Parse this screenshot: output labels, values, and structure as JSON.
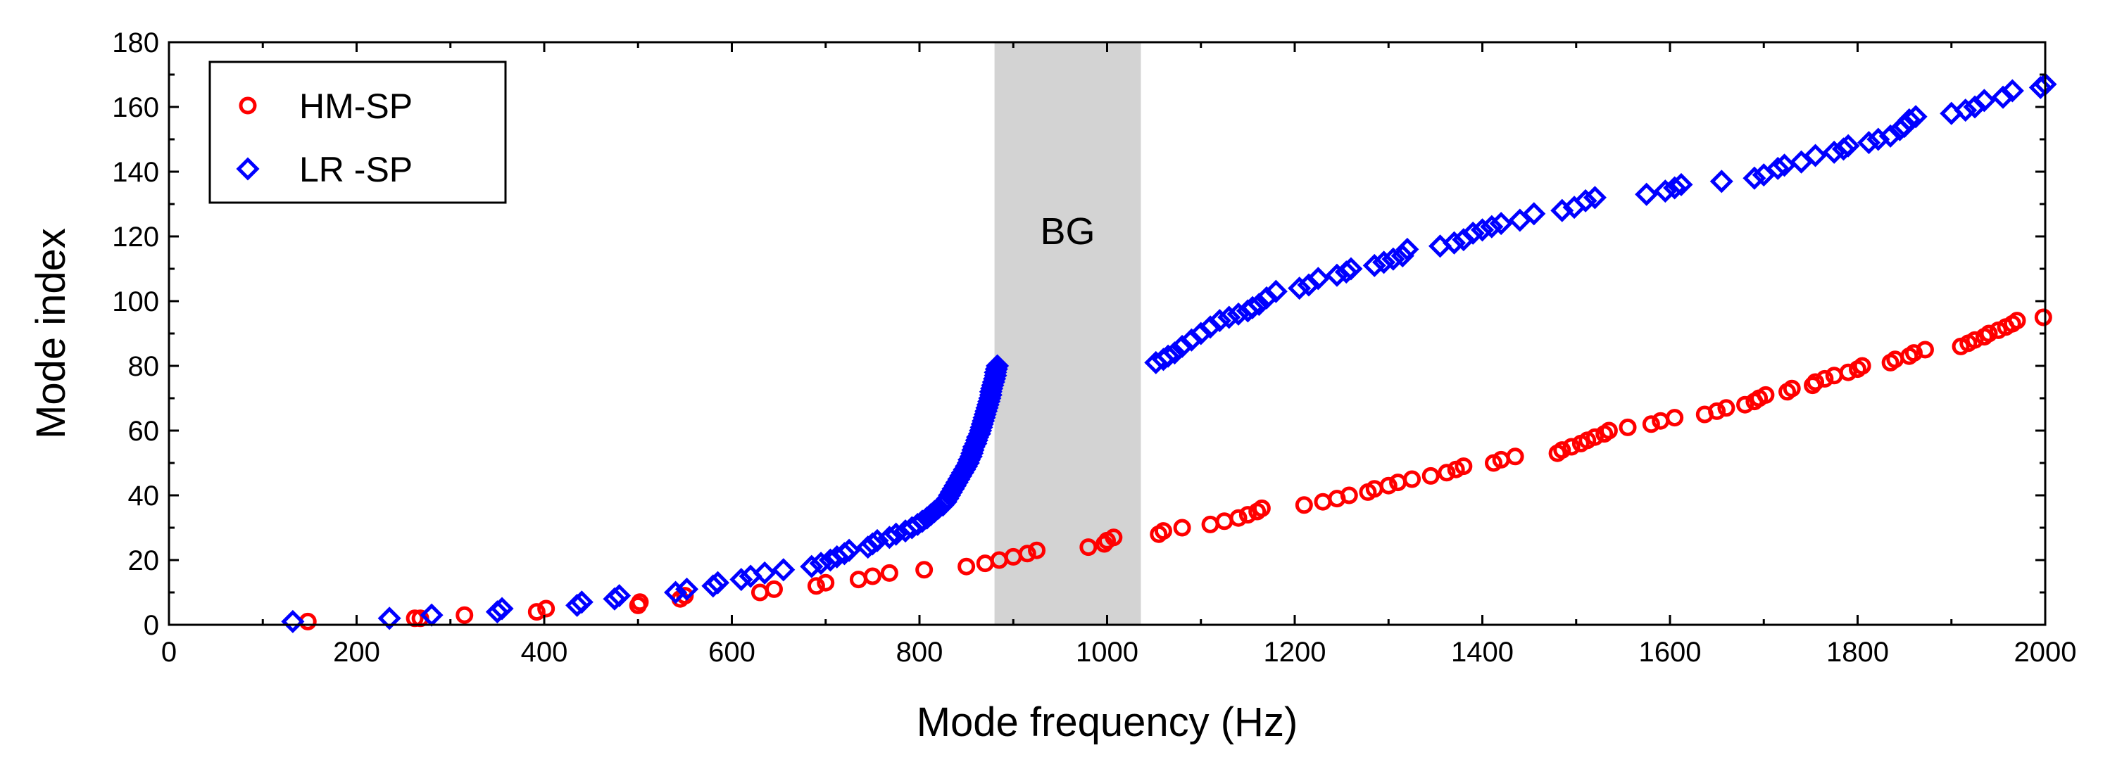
{
  "chart_data": {
    "type": "scatter",
    "title": "",
    "xlabel": "Mode frequency (Hz)",
    "ylabel": "Mode index",
    "xlim": [
      0,
      2000
    ],
    "ylim": [
      0,
      180
    ],
    "xticks": [
      0,
      200,
      400,
      600,
      800,
      1000,
      1200,
      1400,
      1600,
      1800,
      2000
    ],
    "yticks": [
      0,
      20,
      40,
      60,
      80,
      100,
      120,
      140,
      160,
      180
    ],
    "xtick_labels": [
      "0",
      "200",
      "400",
      "600",
      "800",
      "1000",
      "1200",
      "1400",
      "1600",
      "1800",
      "2000"
    ],
    "ytick_labels": [
      "0",
      "20",
      "40",
      "60",
      "80",
      "100",
      "120",
      "140",
      "160",
      "180"
    ],
    "grid": false,
    "legend_position": "top-left",
    "band": {
      "label": "BG",
      "x_start": 880,
      "x_end": 1036,
      "color": "#d3d3d3"
    },
    "series": [
      {
        "name": "HM-SP",
        "marker": "circle",
        "color": "#ff0000",
        "points": [
          [
            148,
            1
          ],
          [
            262,
            2
          ],
          [
            268,
            2
          ],
          [
            315,
            3
          ],
          [
            392,
            4
          ],
          [
            402,
            5
          ],
          [
            500,
            6
          ],
          [
            502,
            7
          ],
          [
            545,
            8
          ],
          [
            550,
            9
          ],
          [
            630,
            10
          ],
          [
            645,
            11
          ],
          [
            690,
            12
          ],
          [
            700,
            13
          ],
          [
            735,
            14
          ],
          [
            750,
            15
          ],
          [
            768,
            16
          ],
          [
            805,
            17
          ],
          [
            850,
            18
          ],
          [
            870,
            19
          ],
          [
            885,
            20
          ],
          [
            900,
            21
          ],
          [
            915,
            22
          ],
          [
            925,
            23
          ],
          [
            980,
            24
          ],
          [
            997,
            25
          ],
          [
            1000,
            26
          ],
          [
            1007,
            27
          ],
          [
            1055,
            28
          ],
          [
            1060,
            29
          ],
          [
            1080,
            30
          ],
          [
            1110,
            31
          ],
          [
            1125,
            32
          ],
          [
            1140,
            33
          ],
          [
            1150,
            34
          ],
          [
            1160,
            35
          ],
          [
            1165,
            36
          ],
          [
            1210,
            37
          ],
          [
            1230,
            38
          ],
          [
            1245,
            39
          ],
          [
            1258,
            40
          ],
          [
            1278,
            41
          ],
          [
            1285,
            42
          ],
          [
            1300,
            43
          ],
          [
            1310,
            44
          ],
          [
            1325,
            45
          ],
          [
            1345,
            46
          ],
          [
            1362,
            47
          ],
          [
            1372,
            48
          ],
          [
            1380,
            49
          ],
          [
            1412,
            50
          ],
          [
            1420,
            51
          ],
          [
            1435,
            52
          ],
          [
            1480,
            53
          ],
          [
            1485,
            54
          ],
          [
            1495,
            55
          ],
          [
            1505,
            56
          ],
          [
            1512,
            57
          ],
          [
            1520,
            58
          ],
          [
            1530,
            59
          ],
          [
            1535,
            60
          ],
          [
            1555,
            61
          ],
          [
            1580,
            62
          ],
          [
            1590,
            63
          ],
          [
            1605,
            64
          ],
          [
            1637,
            65
          ],
          [
            1650,
            66
          ],
          [
            1660,
            67
          ],
          [
            1680,
            68
          ],
          [
            1690,
            69
          ],
          [
            1695,
            70
          ],
          [
            1702,
            71
          ],
          [
            1725,
            72
          ],
          [
            1730,
            73
          ],
          [
            1752,
            74
          ],
          [
            1755,
            75
          ],
          [
            1765,
            76
          ],
          [
            1775,
            77
          ],
          [
            1790,
            78
          ],
          [
            1800,
            79
          ],
          [
            1805,
            80
          ],
          [
            1835,
            81
          ],
          [
            1840,
            82
          ],
          [
            1855,
            83
          ],
          [
            1860,
            84
          ],
          [
            1872,
            85
          ],
          [
            1910,
            86
          ],
          [
            1918,
            87
          ],
          [
            1925,
            88
          ],
          [
            1935,
            89
          ],
          [
            1940,
            90
          ],
          [
            1950,
            91
          ],
          [
            1958,
            92
          ],
          [
            1965,
            93
          ],
          [
            1970,
            94
          ],
          [
            1998,
            95
          ]
        ]
      },
      {
        "name": "LR -SP",
        "marker": "diamond",
        "color": "#0000ff",
        "points": [
          [
            132,
            1
          ],
          [
            235,
            2
          ],
          [
            280,
            3
          ],
          [
            350,
            4
          ],
          [
            355,
            5
          ],
          [
            435,
            6
          ],
          [
            440,
            7
          ],
          [
            475,
            8
          ],
          [
            480,
            9
          ],
          [
            540,
            10
          ],
          [
            552,
            11
          ],
          [
            580,
            12
          ],
          [
            585,
            13
          ],
          [
            610,
            14
          ],
          [
            620,
            15
          ],
          [
            635,
            16
          ],
          [
            655,
            17
          ],
          [
            685,
            18
          ],
          [
            695,
            19
          ],
          [
            705,
            20
          ],
          [
            712,
            21
          ],
          [
            720,
            22
          ],
          [
            725,
            23
          ],
          [
            745,
            24
          ],
          [
            750,
            25
          ],
          [
            755,
            26
          ],
          [
            768,
            27
          ],
          [
            775,
            28
          ],
          [
            785,
            29
          ],
          [
            792,
            30
          ],
          [
            798,
            31
          ],
          [
            803,
            32
          ],
          [
            808,
            33
          ],
          [
            812,
            34
          ],
          [
            816,
            35
          ],
          [
            820,
            36
          ],
          [
            825,
            37
          ],
          [
            828,
            38
          ],
          [
            830,
            39
          ],
          [
            832,
            40
          ],
          [
            834,
            41
          ],
          [
            836,
            42
          ],
          [
            838,
            43
          ],
          [
            840,
            44
          ],
          [
            842,
            45
          ],
          [
            844,
            46
          ],
          [
            846,
            47
          ],
          [
            848,
            48
          ],
          [
            850,
            49
          ],
          [
            852,
            50
          ],
          [
            853,
            51
          ],
          [
            855,
            52
          ],
          [
            856,
            53
          ],
          [
            857,
            54
          ],
          [
            858,
            55
          ],
          [
            860,
            56
          ],
          [
            861,
            57
          ],
          [
            862,
            58
          ],
          [
            864,
            59
          ],
          [
            865,
            60
          ],
          [
            866,
            61
          ],
          [
            867,
            62
          ],
          [
            868,
            63
          ],
          [
            869,
            64
          ],
          [
            870,
            65
          ],
          [
            871,
            66
          ],
          [
            872,
            67
          ],
          [
            873,
            68
          ],
          [
            874,
            69
          ],
          [
            875,
            70
          ],
          [
            876,
            71
          ],
          [
            876,
            72
          ],
          [
            877,
            73
          ],
          [
            878,
            74
          ],
          [
            879,
            75
          ],
          [
            880,
            76
          ],
          [
            881,
            77
          ],
          [
            881,
            78
          ],
          [
            882,
            79
          ],
          [
            883,
            80
          ],
          [
            1052,
            81
          ],
          [
            1060,
            82
          ],
          [
            1065,
            83
          ],
          [
            1072,
            84
          ],
          [
            1080,
            86
          ],
          [
            1090,
            88
          ],
          [
            1100,
            90
          ],
          [
            1110,
            92
          ],
          [
            1120,
            94
          ],
          [
            1130,
            95
          ],
          [
            1140,
            96
          ],
          [
            1150,
            97
          ],
          [
            1155,
            98
          ],
          [
            1162,
            99
          ],
          [
            1170,
            101
          ],
          [
            1180,
            103
          ],
          [
            1205,
            104
          ],
          [
            1215,
            105
          ],
          [
            1225,
            107
          ],
          [
            1245,
            108
          ],
          [
            1255,
            109
          ],
          [
            1260,
            110
          ],
          [
            1285,
            111
          ],
          [
            1295,
            112
          ],
          [
            1305,
            113
          ],
          [
            1315,
            114
          ],
          [
            1320,
            116
          ],
          [
            1355,
            117
          ],
          [
            1370,
            118
          ],
          [
            1380,
            119
          ],
          [
            1390,
            121
          ],
          [
            1400,
            122
          ],
          [
            1410,
            123
          ],
          [
            1420,
            124
          ],
          [
            1440,
            125
          ],
          [
            1455,
            127
          ],
          [
            1485,
            128
          ],
          [
            1498,
            129
          ],
          [
            1510,
            131
          ],
          [
            1520,
            132
          ],
          [
            1575,
            133
          ],
          [
            1595,
            134
          ],
          [
            1605,
            135
          ],
          [
            1612,
            136
          ],
          [
            1655,
            137
          ],
          [
            1690,
            138
          ],
          [
            1700,
            139
          ],
          [
            1715,
            141
          ],
          [
            1722,
            142
          ],
          [
            1740,
            143
          ],
          [
            1755,
            145
          ],
          [
            1775,
            146
          ],
          [
            1785,
            147
          ],
          [
            1790,
            148
          ],
          [
            1812,
            149
          ],
          [
            1822,
            150
          ],
          [
            1835,
            151
          ],
          [
            1845,
            153
          ],
          [
            1850,
            154
          ],
          [
            1855,
            156
          ],
          [
            1862,
            157
          ],
          [
            1900,
            158
          ],
          [
            1915,
            159
          ],
          [
            1925,
            160
          ],
          [
            1935,
            162
          ],
          [
            1955,
            163
          ],
          [
            1965,
            165
          ],
          [
            1995,
            166
          ],
          [
            2000,
            167
          ]
        ]
      }
    ]
  }
}
